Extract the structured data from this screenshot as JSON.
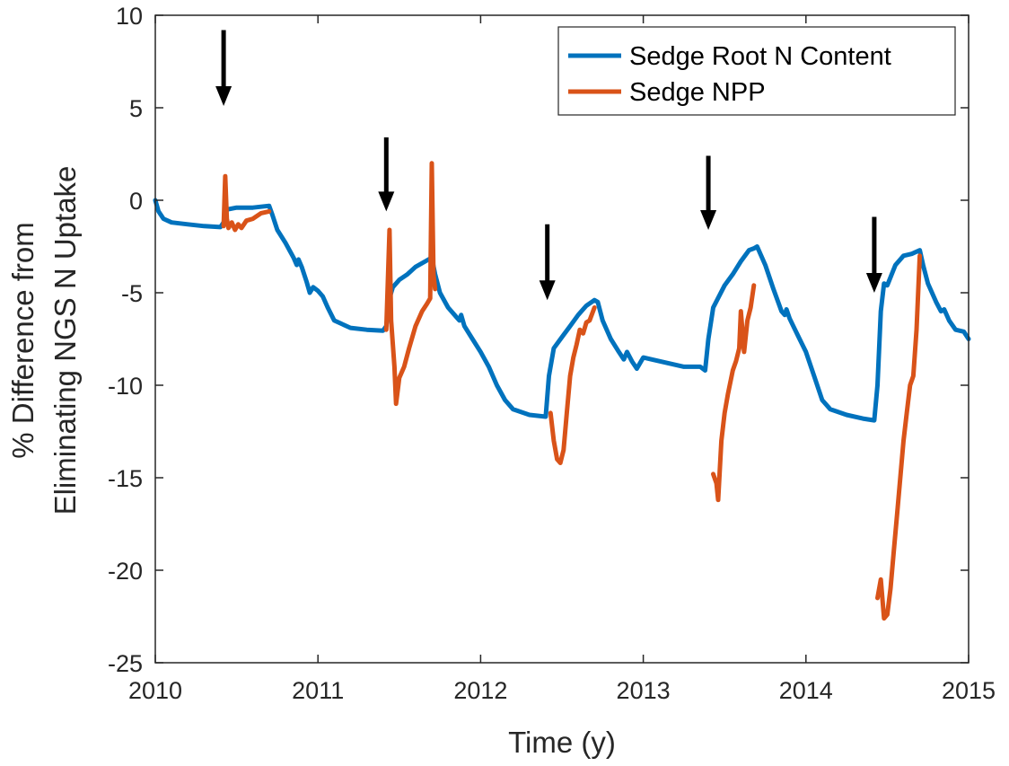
{
  "chart_data": {
    "type": "line",
    "title": "",
    "xlabel": "Time (y)",
    "ylabel_lines": [
      "% Difference from",
      "Eliminating NGS N Uptake"
    ],
    "xlim": [
      2010,
      2015
    ],
    "ylim": [
      -25,
      10
    ],
    "xticks": [
      2010,
      2011,
      2012,
      2013,
      2014,
      2015
    ],
    "yticks": [
      10,
      5,
      0,
      -5,
      -10,
      -15,
      -20,
      -25
    ],
    "xtick_labels": [
      "2010",
      "2011",
      "2012",
      "2013",
      "2014",
      "2015"
    ],
    "ytick_labels": [
      "10",
      "5",
      "0",
      "-5",
      "-10",
      "-15",
      "-20",
      "-25"
    ],
    "grid": false,
    "legend_position": "top-right",
    "series": [
      {
        "name": "Sedge Root N Content",
        "color": "#0072BD",
        "points": [
          [
            2010.0,
            0.0
          ],
          [
            2010.02,
            -0.6
          ],
          [
            2010.05,
            -1.0
          ],
          [
            2010.1,
            -1.2
          ],
          [
            2010.2,
            -1.3
          ],
          [
            2010.3,
            -1.4
          ],
          [
            2010.4,
            -1.45
          ],
          [
            2010.42,
            -1.2
          ],
          [
            2010.44,
            -0.5
          ],
          [
            2010.5,
            -0.4
          ],
          [
            2010.6,
            -0.4
          ],
          [
            2010.7,
            -0.3
          ],
          [
            2010.72,
            -0.8
          ],
          [
            2010.75,
            -1.6
          ],
          [
            2010.8,
            -2.3
          ],
          [
            2010.85,
            -3.1
          ],
          [
            2010.87,
            -3.5
          ],
          [
            2010.88,
            -3.2
          ],
          [
            2010.9,
            -3.6
          ],
          [
            2010.93,
            -4.4
          ],
          [
            2010.95,
            -5.0
          ],
          [
            2010.97,
            -4.7
          ],
          [
            2011.0,
            -4.9
          ],
          [
            2011.03,
            -5.2
          ],
          [
            2011.06,
            -5.8
          ],
          [
            2011.1,
            -6.5
          ],
          [
            2011.2,
            -6.9
          ],
          [
            2011.3,
            -7.0
          ],
          [
            2011.4,
            -7.05
          ],
          [
            2011.42,
            -6.8
          ],
          [
            2011.44,
            -5.3
          ],
          [
            2011.46,
            -4.7
          ],
          [
            2011.5,
            -4.3
          ],
          [
            2011.55,
            -4.0
          ],
          [
            2011.6,
            -3.6
          ],
          [
            2011.66,
            -3.3
          ],
          [
            2011.7,
            -3.1
          ],
          [
            2011.72,
            -4.0
          ],
          [
            2011.75,
            -5.0
          ],
          [
            2011.8,
            -5.8
          ],
          [
            2011.85,
            -6.3
          ],
          [
            2011.87,
            -6.5
          ],
          [
            2011.88,
            -6.2
          ],
          [
            2011.9,
            -6.8
          ],
          [
            2011.95,
            -7.5
          ],
          [
            2012.0,
            -8.2
          ],
          [
            2012.05,
            -9.0
          ],
          [
            2012.1,
            -10.0
          ],
          [
            2012.15,
            -10.8
          ],
          [
            2012.2,
            -11.3
          ],
          [
            2012.3,
            -11.6
          ],
          [
            2012.4,
            -11.7
          ],
          [
            2012.42,
            -9.5
          ],
          [
            2012.45,
            -8.0
          ],
          [
            2012.5,
            -7.4
          ],
          [
            2012.55,
            -6.8
          ],
          [
            2012.6,
            -6.2
          ],
          [
            2012.65,
            -5.7
          ],
          [
            2012.7,
            -5.4
          ],
          [
            2012.72,
            -5.5
          ],
          [
            2012.75,
            -6.5
          ],
          [
            2012.8,
            -7.5
          ],
          [
            2012.85,
            -8.2
          ],
          [
            2012.88,
            -8.6
          ],
          [
            2012.9,
            -8.2
          ],
          [
            2012.93,
            -8.7
          ],
          [
            2012.96,
            -9.1
          ],
          [
            2013.0,
            -8.5
          ],
          [
            2013.05,
            -8.6
          ],
          [
            2013.15,
            -8.8
          ],
          [
            2013.25,
            -9.0
          ],
          [
            2013.35,
            -9.0
          ],
          [
            2013.38,
            -9.2
          ],
          [
            2013.4,
            -7.5
          ],
          [
            2013.43,
            -5.8
          ],
          [
            2013.5,
            -4.6
          ],
          [
            2013.55,
            -4.0
          ],
          [
            2013.6,
            -3.3
          ],
          [
            2013.65,
            -2.7
          ],
          [
            2013.68,
            -2.6
          ],
          [
            2013.7,
            -2.5
          ],
          [
            2013.75,
            -3.5
          ],
          [
            2013.8,
            -4.8
          ],
          [
            2013.85,
            -6.0
          ],
          [
            2013.87,
            -6.2
          ],
          [
            2013.88,
            -5.9
          ],
          [
            2013.9,
            -6.4
          ],
          [
            2013.95,
            -7.3
          ],
          [
            2014.0,
            -8.2
          ],
          [
            2014.05,
            -9.5
          ],
          [
            2014.1,
            -10.8
          ],
          [
            2014.15,
            -11.3
          ],
          [
            2014.25,
            -11.6
          ],
          [
            2014.35,
            -11.8
          ],
          [
            2014.42,
            -11.9
          ],
          [
            2014.44,
            -10.0
          ],
          [
            2014.46,
            -6.0
          ],
          [
            2014.48,
            -4.5
          ],
          [
            2014.5,
            -4.6
          ],
          [
            2014.55,
            -3.5
          ],
          [
            2014.6,
            -3.0
          ],
          [
            2014.65,
            -2.9
          ],
          [
            2014.7,
            -2.7
          ],
          [
            2014.72,
            -3.5
          ],
          [
            2014.75,
            -4.5
          ],
          [
            2014.8,
            -5.5
          ],
          [
            2014.83,
            -6.0
          ],
          [
            2014.85,
            -5.9
          ],
          [
            2014.88,
            -6.5
          ],
          [
            2014.92,
            -7.0
          ],
          [
            2014.97,
            -7.1
          ],
          [
            2015.0,
            -7.5
          ]
        ]
      },
      {
        "name": "Sedge NPP",
        "color": "#D95319",
        "segments": [
          [
            [
              2010.42,
              -1.4
            ],
            [
              2010.43,
              1.3
            ],
            [
              2010.44,
              -1.0
            ],
            [
              2010.45,
              -1.5
            ],
            [
              2010.47,
              -1.2
            ],
            [
              2010.49,
              -1.6
            ],
            [
              2010.51,
              -1.3
            ],
            [
              2010.53,
              -1.5
            ],
            [
              2010.56,
              -1.1
            ],
            [
              2010.6,
              -1.0
            ],
            [
              2010.65,
              -0.7
            ],
            [
              2010.7,
              -0.6
            ]
          ],
          [
            [
              2011.42,
              -7.0
            ],
            [
              2011.44,
              -1.6
            ],
            [
              2011.45,
              -6.5
            ],
            [
              2011.47,
              -9.0
            ],
            [
              2011.48,
              -11.0
            ],
            [
              2011.5,
              -9.6
            ],
            [
              2011.53,
              -9.0
            ],
            [
              2011.56,
              -8.0
            ],
            [
              2011.6,
              -6.8
            ],
            [
              2011.64,
              -6.0
            ],
            [
              2011.67,
              -5.6
            ],
            [
              2011.69,
              -5.3
            ],
            [
              2011.7,
              2.0
            ],
            [
              2011.71,
              -4.0
            ],
            [
              2011.72,
              -4.8
            ]
          ],
          [
            [
              2012.43,
              -11.5
            ],
            [
              2012.45,
              -13.0
            ],
            [
              2012.47,
              -14.0
            ],
            [
              2012.49,
              -14.2
            ],
            [
              2012.51,
              -13.5
            ],
            [
              2012.53,
              -11.5
            ],
            [
              2012.55,
              -9.5
            ],
            [
              2012.57,
              -8.5
            ],
            [
              2012.59,
              -7.8
            ],
            [
              2012.61,
              -7.0
            ],
            [
              2012.63,
              -7.2
            ],
            [
              2012.65,
              -6.6
            ],
            [
              2012.67,
              -6.5
            ],
            [
              2012.7,
              -5.8
            ]
          ],
          [
            [
              2013.43,
              -14.8
            ],
            [
              2013.45,
              -15.3
            ],
            [
              2013.46,
              -16.2
            ],
            [
              2013.48,
              -13.0
            ],
            [
              2013.5,
              -11.5
            ],
            [
              2013.52,
              -10.5
            ],
            [
              2013.55,
              -9.2
            ],
            [
              2013.57,
              -8.7
            ],
            [
              2013.59,
              -8.0
            ],
            [
              2013.6,
              -6.0
            ],
            [
              2013.62,
              -8.2
            ],
            [
              2013.64,
              -6.5
            ],
            [
              2013.66,
              -5.8
            ],
            [
              2013.68,
              -4.6
            ]
          ],
          [
            [
              2014.44,
              -21.5
            ],
            [
              2014.46,
              -20.5
            ],
            [
              2014.48,
              -22.6
            ],
            [
              2014.5,
              -22.4
            ],
            [
              2014.52,
              -21.0
            ],
            [
              2014.54,
              -19.0
            ],
            [
              2014.56,
              -17.0
            ],
            [
              2014.58,
              -15.0
            ],
            [
              2014.6,
              -13.0
            ],
            [
              2014.62,
              -11.5
            ],
            [
              2014.64,
              -10.0
            ],
            [
              2014.66,
              -9.5
            ],
            [
              2014.68,
              -7.0
            ],
            [
              2014.7,
              -3.0
            ]
          ]
        ]
      }
    ],
    "annotations": {
      "arrow_x": [
        2010.42,
        2011.42,
        2012.41,
        2013.4,
        2014.42
      ],
      "arrow_top_y": [
        9.2,
        3.4,
        -1.3,
        2.4,
        -0.9
      ],
      "arrow_tip_y": [
        5.1,
        -0.6,
        -5.4,
        -1.6,
        -5.0
      ],
      "color": "#000000"
    }
  }
}
